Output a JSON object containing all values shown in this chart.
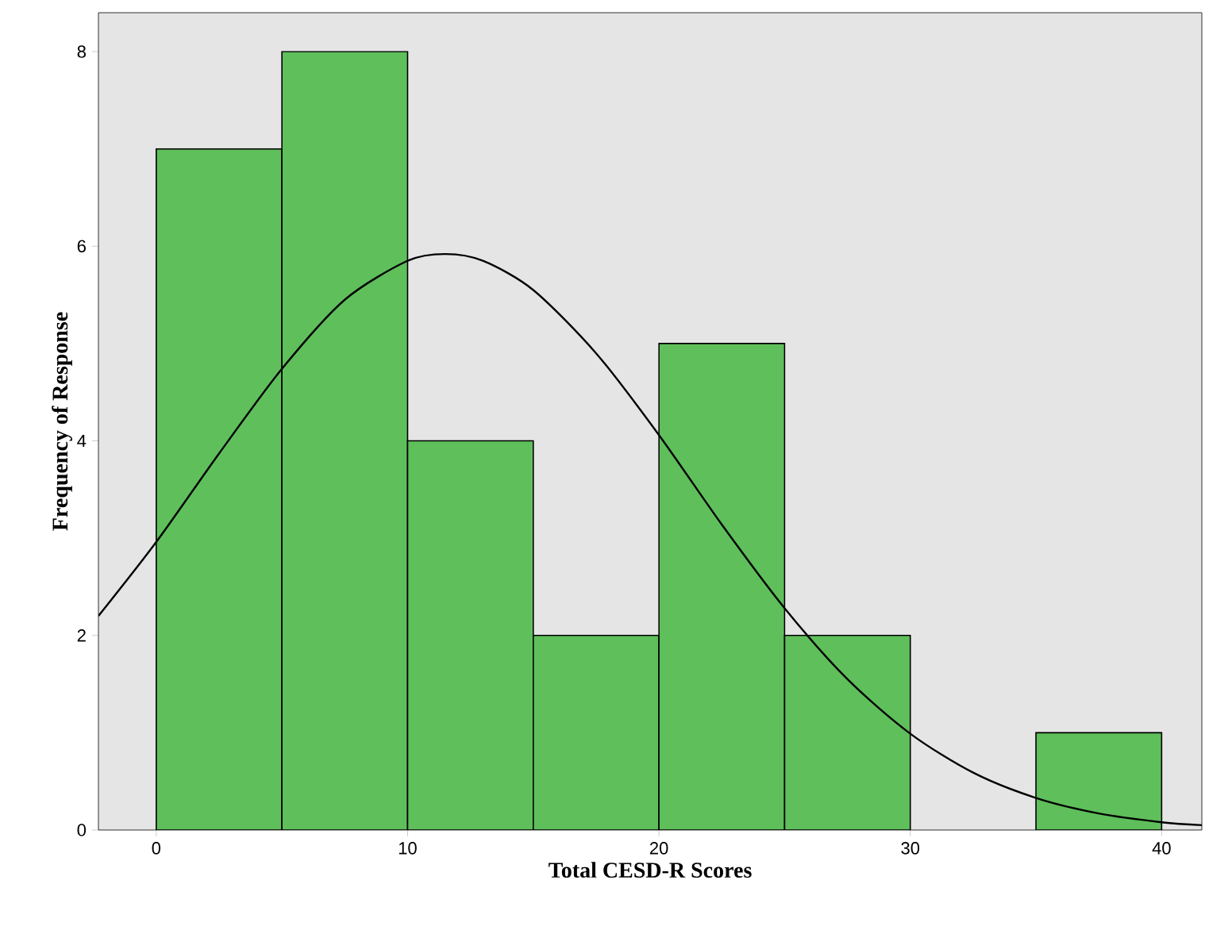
{
  "chart_data": {
    "type": "histogram",
    "xlabel": "Total CESD-R Scores",
    "ylabel": "Frequency of Response",
    "bins": [
      0,
      5,
      10,
      15,
      20,
      25,
      30,
      35,
      40
    ],
    "values": [
      7,
      8,
      4,
      2,
      5,
      2,
      0,
      1
    ],
    "color": "#5fbf5b",
    "xlim": [
      -2.3,
      41.6
    ],
    "ylim": [
      0,
      8.4
    ],
    "xticks": [
      0,
      10,
      20,
      30,
      40
    ],
    "yticks": [
      0,
      2,
      4,
      6,
      8
    ],
    "series": [
      {
        "type": "line",
        "color": "#000000",
        "marker": "none",
        "line_style": "solid",
        "x": [
          -2.3,
          0,
          2.5,
          5,
          7.5,
          10,
          11.5,
          13,
          15,
          17.5,
          20,
          22.5,
          25,
          27.5,
          30,
          32.5,
          35,
          37.5,
          40,
          41.6
        ],
        "values": [
          2.2,
          2.96,
          3.87,
          4.74,
          5.45,
          5.85,
          5.92,
          5.85,
          5.55,
          4.9,
          4.06,
          3.14,
          2.28,
          1.55,
          0.99,
          0.59,
          0.33,
          0.17,
          0.08,
          0.05
        ]
      }
    ]
  }
}
